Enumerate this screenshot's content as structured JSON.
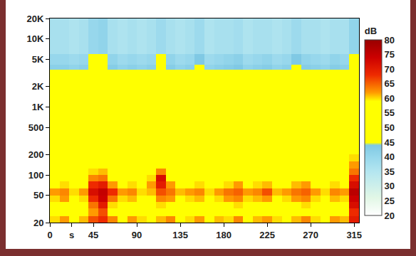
{
  "chart_data": {
    "type": "heatmap",
    "log": "y",
    "grid": true,
    "x": [
      0,
      10,
      20,
      30,
      40,
      50,
      60,
      70,
      80,
      90,
      100,
      110,
      120,
      130,
      140,
      150,
      160,
      170,
      180,
      190,
      200,
      210,
      220,
      230,
      240,
      250,
      260,
      270,
      280,
      290,
      300,
      310,
      320
    ],
    "y": [
      20,
      25,
      32,
      40,
      50,
      63,
      80,
      100,
      125,
      160,
      200,
      400,
      800,
      1600,
      2500,
      3500,
      4200,
      6000,
      20000
    ],
    "xlim": [
      0,
      320
    ],
    "xticks": [
      0,
      {
        "value": 22.5,
        "label": "s"
      },
      45,
      90,
      135,
      180,
      225,
      270,
      315
    ],
    "ylim": [
      20,
      20000
    ],
    "yticks": [
      20,
      50,
      100,
      200,
      500,
      {
        "value": 1000,
        "label": "1K"
      },
      {
        "value": 2000,
        "label": "2K"
      },
      {
        "value": 5000,
        "label": "5K"
      },
      {
        "value": 10000,
        "label": "10K"
      },
      {
        "value": 20000,
        "label": "20K"
      }
    ],
    "z": [
      [
        60,
        62,
        58,
        61,
        66,
        68,
        63,
        59,
        62,
        60,
        58,
        61,
        63,
        59,
        60,
        62,
        58,
        61,
        60,
        63,
        59,
        61,
        62,
        60,
        58,
        61,
        63,
        60,
        59,
        62,
        61,
        70
      ],
      [
        55,
        57,
        54,
        56,
        62,
        66,
        58,
        55,
        57,
        56,
        54,
        58,
        57,
        55,
        56,
        57,
        54,
        56,
        55,
        58,
        55,
        56,
        57,
        55,
        54,
        57,
        58,
        55,
        54,
        57,
        56,
        68
      ],
      [
        57,
        59,
        56,
        58,
        64,
        70,
        60,
        56,
        58,
        57,
        56,
        60,
        59,
        56,
        57,
        59,
        56,
        58,
        57,
        60,
        56,
        58,
        59,
        57,
        56,
        59,
        60,
        57,
        56,
        58,
        57,
        72
      ],
      [
        60,
        62,
        58,
        60,
        68,
        74,
        64,
        60,
        61,
        58,
        59,
        63,
        62,
        59,
        60,
        61,
        58,
        60,
        62,
        63,
        60,
        61,
        62,
        59,
        60,
        62,
        63,
        60,
        58,
        61,
        60,
        74
      ],
      [
        62,
        63,
        60,
        62,
        72,
        75,
        68,
        62,
        63,
        60,
        61,
        66,
        64,
        61,
        62,
        63,
        60,
        62,
        64,
        65,
        62,
        63,
        66,
        61,
        62,
        64,
        65,
        62,
        60,
        63,
        62,
        76
      ],
      [
        58,
        60,
        57,
        59,
        68,
        70,
        62,
        58,
        60,
        58,
        62,
        70,
        62,
        58,
        59,
        60,
        57,
        59,
        60,
        62,
        58,
        60,
        61,
        58,
        59,
        61,
        62,
        59,
        57,
        60,
        59,
        72
      ],
      [
        55,
        57,
        54,
        56,
        63,
        64,
        58,
        55,
        56,
        55,
        60,
        72,
        59,
        55,
        56,
        57,
        54,
        56,
        57,
        58,
        55,
        57,
        57,
        55,
        56,
        57,
        58,
        56,
        54,
        57,
        56,
        68
      ],
      [
        54,
        56,
        53,
        55,
        60,
        61,
        56,
        54,
        55,
        54,
        57,
        63,
        57,
        54,
        55,
        56,
        53,
        55,
        56,
        57,
        54,
        55,
        56,
        54,
        55,
        56,
        57,
        55,
        53,
        56,
        55,
        64
      ],
      [
        53,
        55,
        52,
        54,
        58,
        59,
        55,
        53,
        54,
        53,
        55,
        58,
        55,
        53,
        54,
        55,
        52,
        54,
        55,
        56,
        53,
        54,
        55,
        53,
        54,
        55,
        56,
        54,
        52,
        55,
        54,
        62
      ],
      [
        52,
        54,
        51,
        53,
        57,
        57,
        54,
        52,
        53,
        52,
        54,
        56,
        54,
        52,
        53,
        54,
        51,
        53,
        54,
        55,
        52,
        53,
        54,
        52,
        53,
        54,
        55,
        53,
        51,
        54,
        53,
        60
      ],
      [
        51,
        52,
        50,
        51,
        55,
        56,
        53,
        51,
        52,
        51,
        52,
        54,
        53,
        51,
        52,
        53,
        50,
        52,
        53,
        54,
        51,
        52,
        53,
        51,
        52,
        53,
        53,
        52,
        50,
        53,
        52,
        58
      ],
      [
        50,
        51,
        49,
        50,
        54,
        56,
        52,
        50,
        51,
        50,
        51,
        53,
        52,
        50,
        51,
        52,
        49,
        51,
        52,
        53,
        50,
        51,
        52,
        50,
        51,
        52,
        52,
        51,
        49,
        52,
        51,
        57
      ],
      [
        49,
        50,
        48,
        49,
        53,
        55,
        51,
        49,
        50,
        49,
        50,
        52,
        51,
        49,
        50,
        51,
        48,
        50,
        51,
        52,
        49,
        50,
        51,
        49,
        50,
        51,
        51,
        50,
        48,
        51,
        50,
        56
      ],
      [
        48,
        49,
        47,
        48,
        52,
        54,
        50,
        48,
        49,
        48,
        49,
        51,
        50,
        48,
        49,
        50,
        47,
        49,
        50,
        51,
        48,
        49,
        50,
        48,
        49,
        50,
        50,
        49,
        47,
        50,
        49,
        55
      ],
      [
        46,
        47,
        45,
        46,
        50,
        52,
        48,
        45,
        47,
        46,
        47,
        49,
        48,
        45,
        46,
        48,
        45,
        47,
        48,
        49,
        46,
        47,
        48,
        45,
        46,
        48,
        48,
        47,
        45,
        48,
        47,
        52
      ],
      [
        42,
        42,
        41,
        42,
        47,
        49,
        43,
        41,
        42,
        41,
        42,
        46,
        43,
        41,
        42,
        45,
        41,
        42,
        43,
        44,
        41,
        42,
        43,
        41,
        42,
        45,
        43,
        42,
        41,
        43,
        42,
        48
      ],
      [
        40,
        40,
        39,
        40,
        46,
        48,
        41,
        39,
        40,
        39,
        40,
        45,
        41,
        39,
        40,
        44,
        39,
        40,
        41,
        42,
        39,
        40,
        41,
        39,
        40,
        44,
        41,
        40,
        39,
        41,
        40,
        47
      ],
      [
        37,
        37,
        36,
        37,
        40,
        41,
        37,
        36,
        37,
        36,
        37,
        39,
        37,
        36,
        37,
        39,
        36,
        37,
        37,
        38,
        36,
        37,
        37,
        36,
        37,
        39,
        37,
        37,
        36,
        37,
        37,
        41
      ]
    ],
    "colorbar": {
      "title": "dB",
      "range": [
        20,
        80
      ],
      "ticks": [
        20,
        25,
        30,
        35,
        40,
        45,
        50,
        55,
        60,
        65,
        70,
        75,
        80
      ]
    }
  }
}
